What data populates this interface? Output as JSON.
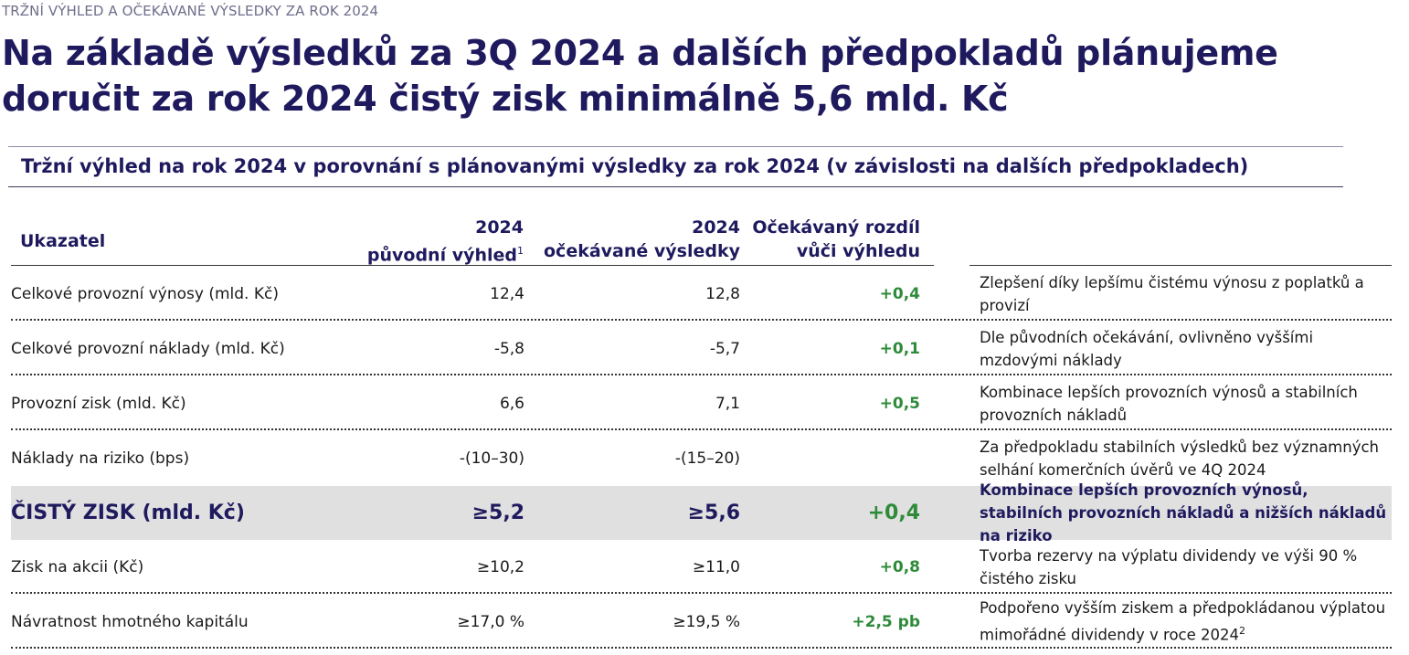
{
  "eyebrow": "TRŽNÍ VÝHLED A OČEKÁVANÉ VÝSLEDKY ZA ROK 2024",
  "headline": {
    "line1": "Na základě výsledků za 3Q 2024 a dalších předpokladů plánujeme",
    "line2": "doručit za rok 2024 čistý zisk minimálně 5,6 mld. Kč"
  },
  "subtitle": "Tržní výhled na rok 2024 v porovnání s plánovanými výsledky za rok 2024 (v závislosti na dalších předpokladech)",
  "table": {
    "headers": {
      "indicator": "Ukazatel",
      "orig_year": "2024",
      "orig_label": "původní výhled",
      "orig_footnote": "1",
      "exp_year": "2024",
      "exp_label": "očekávané výsledky",
      "diff_line1": "Očekávaný rozdíl",
      "diff_line2": "vůči výhledu"
    },
    "rows": [
      {
        "label": "Celkové provozní výnosy (mld. Kč)",
        "original": "12,4",
        "expected": "12,8",
        "diff": "+0,4",
        "comment": "Zlepšení díky lepšímu čistému výnosu z poplatků a provizí"
      },
      {
        "label": "Celkové provozní náklady (mld. Kč)",
        "original": "-5,8",
        "expected": "-5,7",
        "diff": "+0,1",
        "comment": "Dle původních očekávání, ovlivněno  vyššími mzdovými náklady"
      },
      {
        "label": "Provozní zisk (mld. Kč)",
        "original": "6,6",
        "expected": "7,1",
        "diff": "+0,5",
        "comment": "Kombinace lepších provozních výnosů a stabilních provozních nákladů"
      },
      {
        "label": "Náklady na riziko (bps)",
        "original": "-(10–30)",
        "expected": "-(15–20)",
        "diff": "",
        "comment": "Za předpokladu stabilních výsledků bez významných selhání komerčních úvěrů ve 4Q 2024"
      },
      {
        "label": "ČISTÝ ZISK (mld. Kč)",
        "original": "≥5,2",
        "expected": "≥5,6",
        "diff": "+0,4",
        "comment": "Kombinace lepších provozních výnosů, stabilních provozních nákladů a nižších nákladů na riziko"
      },
      {
        "label": "Zisk na akcii (Kč)",
        "original": "≥10,2",
        "expected": "≥11,0",
        "diff": "+0,8",
        "comment": "Tvorba rezervy na výplatu dividendy ve výši 90 % čistého zisku"
      },
      {
        "label": "Návratnost hmotného kapitálu",
        "original": "≥17,0 %",
        "expected": "≥19,5 %",
        "diff": "+2,5 pb",
        "comment": "Podpořeno vyšším ziskem a předpokládanou výplatou mimořádné dividendy v roce 2024",
        "comment_footnote": "2"
      }
    ]
  },
  "colors": {
    "navy": "#1f1a5e",
    "positive_green": "#2e8b3a",
    "highlight_row": "#e0e0e0",
    "eyebrow_gray": "#6e6e8c"
  }
}
